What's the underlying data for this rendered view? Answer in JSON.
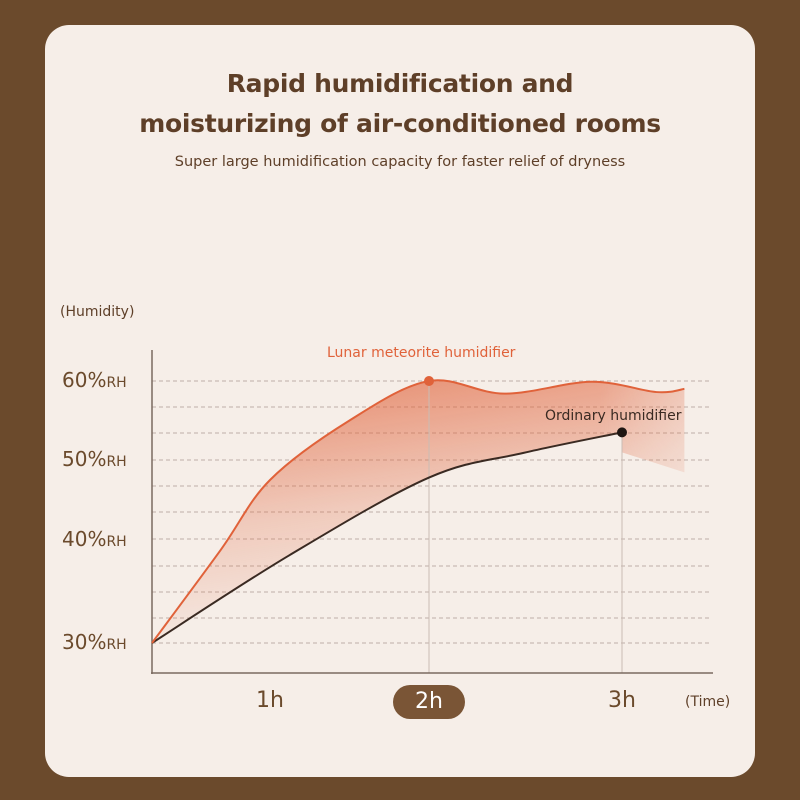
{
  "title_line1": "Rapid humidification and",
  "title_line2": "moisturizing of air-conditioned rooms",
  "subtitle": "Super large humidification capacity for faster relief of dryness",
  "colors": {
    "background": "#6b4a2c",
    "card": "#f6eee8",
    "text": "#5e3f28",
    "lunar": "#e0623a",
    "ordinary": "#3a2a22",
    "highlight": "#7a5536"
  },
  "chart_data": {
    "type": "line",
    "ylabel": "(Humidity)",
    "xlabel": "(Time)",
    "yticks": [
      {
        "value": 60,
        "label": "60%",
        "unit": "RH"
      },
      {
        "value": 50,
        "label": "50%",
        "unit": "RH"
      },
      {
        "value": 40,
        "label": "40%",
        "unit": "RH"
      },
      {
        "value": 30,
        "label": "30%",
        "unit": "RH"
      }
    ],
    "xticks": [
      {
        "value": 1,
        "label": "1h"
      },
      {
        "value": 2,
        "label": "2h",
        "highlighted": true
      },
      {
        "value": 3,
        "label": "3h"
      }
    ],
    "grid": true,
    "series": [
      {
        "name": "Lunar meteorite humidifier",
        "marker_at": 2,
        "x": [
          0,
          0.58,
          1,
          1.5,
          2,
          2.39,
          2.84,
          3.22,
          3.4
        ],
        "y": [
          30,
          39,
          47.5,
          55,
          60,
          58.4,
          59.9,
          58.6,
          59.0
        ]
      },
      {
        "name": "Ordinary humidifier",
        "marker_at": 3,
        "x": [
          0,
          1.12,
          2,
          2.49,
          3
        ],
        "y": [
          30,
          38.5,
          47.8,
          50.9,
          53.5
        ]
      }
    ]
  }
}
